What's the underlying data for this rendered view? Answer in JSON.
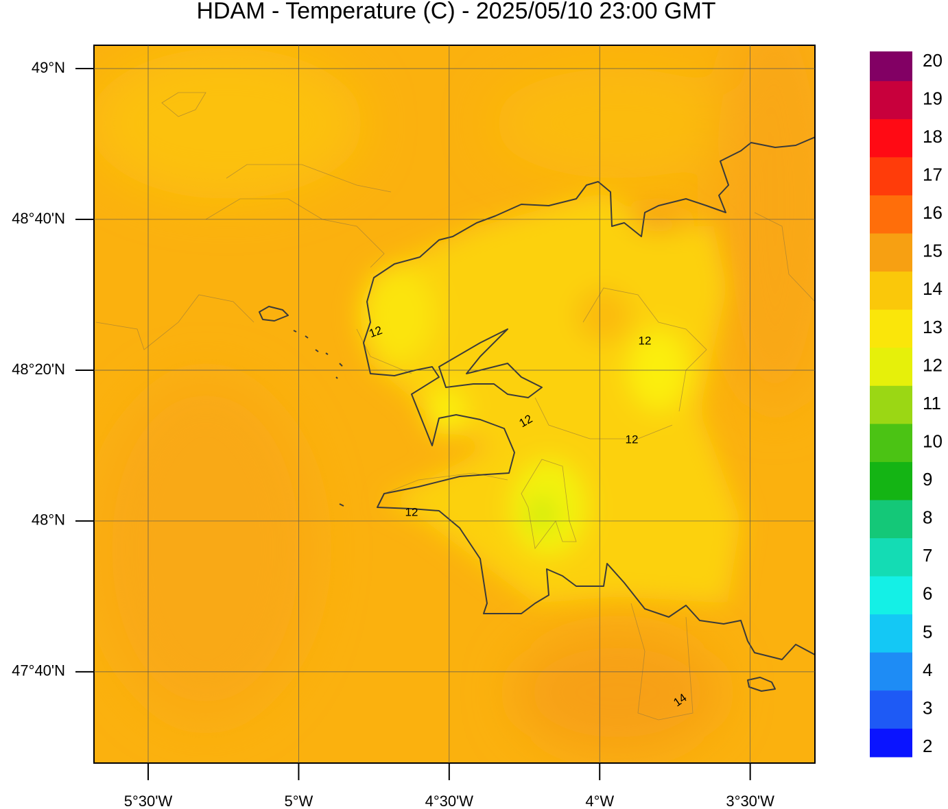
{
  "title": "HDAM - Temperature (C)  -  2025/05/10  23:00 GMT",
  "map": {
    "xlim": [
      -5.68,
      -3.285
    ],
    "ylim": [
      47.465,
      49.0515
    ],
    "xticks": [
      {
        "value": -5.5,
        "label": "5°30'W"
      },
      {
        "value": -5,
        "label": "5°W"
      },
      {
        "value": -4.5,
        "label": "4°30'W"
      },
      {
        "value": -4,
        "label": "4°W"
      },
      {
        "value": -3.5,
        "label": "3°30'W"
      }
    ],
    "yticks": [
      {
        "value": 49,
        "label": "49°N"
      },
      {
        "value": 48.6667,
        "label": "48°40'N"
      },
      {
        "value": 48.3333,
        "label": "48°20'N"
      },
      {
        "value": 48,
        "label": "48°N"
      },
      {
        "value": 47.6667,
        "label": "47°40'N"
      }
    ],
    "contour_labels": [
      "12",
      "12",
      "12",
      "12",
      "12",
      "14"
    ]
  },
  "colorbar": {
    "lim": [
      1.75,
      20.27
    ],
    "ticks": [
      2,
      3,
      4,
      5,
      6,
      7,
      8,
      9,
      10,
      11,
      12,
      13,
      14,
      15,
      16,
      17,
      18,
      19,
      20
    ],
    "colors": [
      "#0a14ff",
      "#1e5af5",
      "#1e8cf5",
      "#14c8f5",
      "#14f0e6",
      "#14dcb4",
      "#14c878",
      "#14b414",
      "#4bc314",
      "#9bd714",
      "#e6f00a",
      "#fae60a",
      "#fac80a",
      "#f7a012",
      "#ff6e0a",
      "#ff3c0a",
      "#ff0a14",
      "#c8003c",
      "#820064",
      "#500096"
    ]
  }
}
